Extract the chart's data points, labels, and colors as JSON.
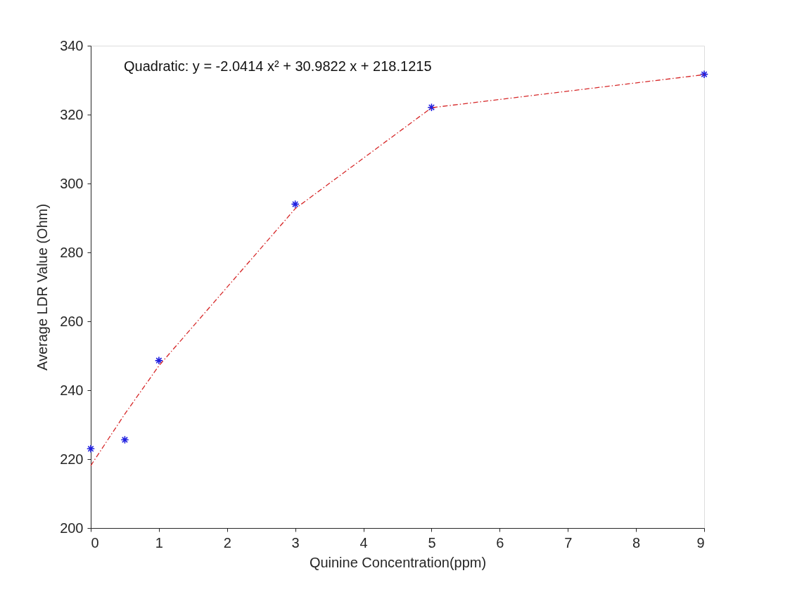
{
  "chart_data": {
    "type": "scatter",
    "xlabel": "Quinine Concentration(ppm)",
    "ylabel": "Average LDR Value (Ohm)",
    "annotations": [
      "Quadratic: y = -2.0414 x² + 30.9822 x + 218.1215"
    ],
    "x": [
      0,
      0.5,
      1,
      3,
      5,
      9
    ],
    "series": [
      {
        "color": "#1f1fe0",
        "marker": "cross",
        "values": [
          223.0,
          225.6,
          248.6,
          294.0,
          322.1,
          331.7
        ]
      },
      {
        "type": "line",
        "color": "#d62728",
        "line_style": "dashed",
        "marker": "none",
        "x": [
          0,
          0.5,
          1,
          3,
          5,
          9
        ],
        "values": [
          218.1,
          233.1,
          247.1,
          292.7,
          322.0,
          331.6
        ]
      }
    ],
    "xlim": [
      0,
      9
    ],
    "xticks": [
      0,
      1,
      2,
      3,
      4,
      5,
      6,
      7,
      8,
      9
    ],
    "ylim": [
      200,
      340
    ],
    "yticks": [
      200,
      220,
      240,
      260,
      280,
      300,
      320,
      340
    ],
    "grid": false
  }
}
